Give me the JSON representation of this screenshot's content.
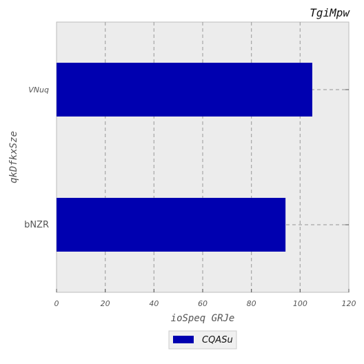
{
  "chart_data": {
    "type": "bar",
    "orientation": "horizontal",
    "title": "TgiMpw",
    "xlabel": "ioSpeq GRJe",
    "ylabel": "qkDfkxSze",
    "categories": [
      "VNuq",
      "bNZR"
    ],
    "series": [
      {
        "name": "CQASu",
        "values": [
          105,
          94
        ],
        "color": "#0000b0"
      }
    ],
    "xlim": [
      0,
      120
    ],
    "xticks": [
      "0",
      "20",
      "40",
      "60",
      "80",
      "100",
      "120"
    ],
    "grid": true,
    "legend_position": "bottom-center",
    "colors": {
      "plot_background": "#ececec",
      "grid": "#a6a6a6"
    }
  }
}
